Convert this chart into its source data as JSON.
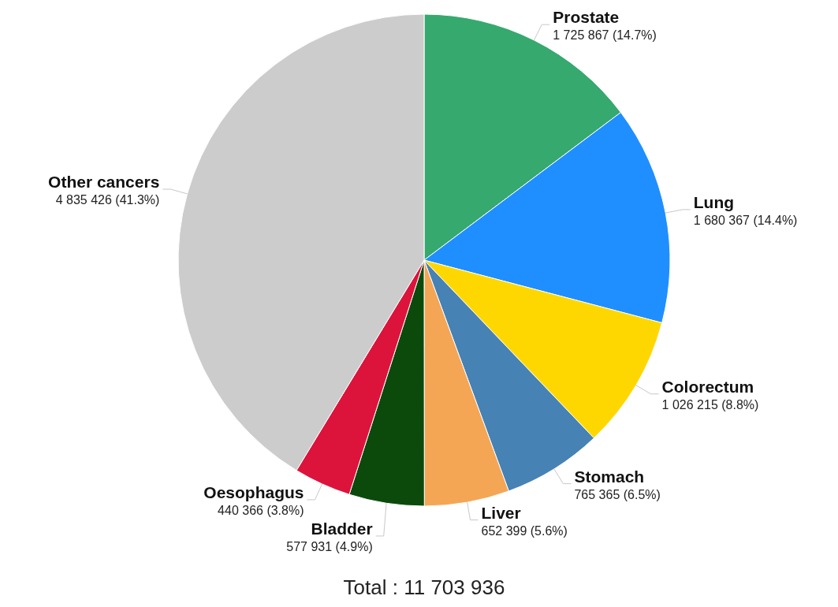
{
  "chart_data": {
    "type": "pie",
    "categories": [
      "Prostate",
      "Lung",
      "Colorectum",
      "Stomach",
      "Liver",
      "Bladder",
      "Oesophagus",
      "Other cancers"
    ],
    "values": [
      1725867,
      1680367,
      1026215,
      765365,
      652399,
      577931,
      440366,
      4835426
    ],
    "value_labels": [
      "1 725 867 (14.7%)",
      "1 680 367 (14.4%)",
      "1 026 215 (8.8%)",
      "765 365 (6.5%)",
      "652 399 (5.6%)",
      "577 931 (4.9%)",
      "440 366 (3.8%)",
      "4 835 426 (41.3%)"
    ],
    "colors": [
      "#36a96e",
      "#1f8fff",
      "#ffd700",
      "#4682b4",
      "#f4a655",
      "#0b4a0b",
      "#dc143c",
      "#cccccc"
    ],
    "annotations": [
      "Total : 11 703 936"
    ]
  }
}
